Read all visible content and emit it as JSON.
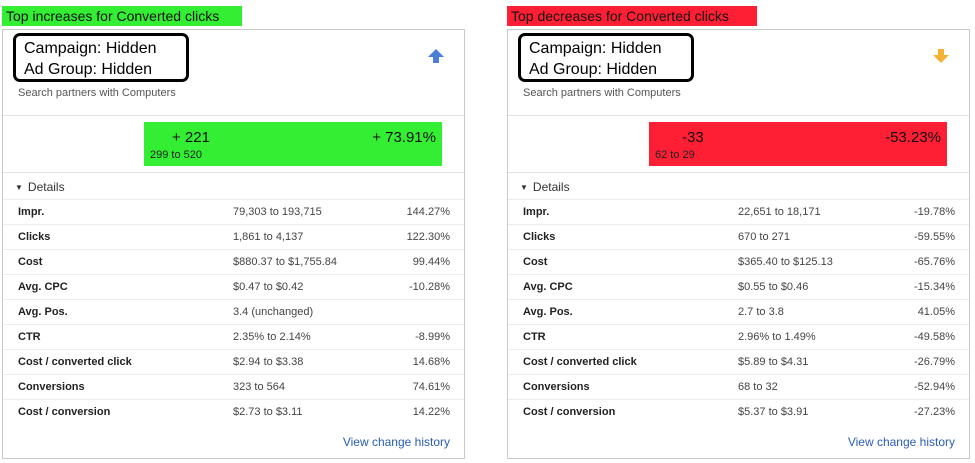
{
  "colors": {
    "increase_highlight": "#33ee33",
    "decrease_highlight": "#ff1f35",
    "up_arrow": "#4a7fd8",
    "down_arrow": "#f2b233",
    "link": "#2a5db0"
  },
  "increases": {
    "heading": "Top increases for Converted clicks",
    "campaign": "Campaign: Hidden",
    "ad_group": "Ad Group: Hidden",
    "network": "Search partners with Computers",
    "trend_icon": "up-arrow-icon",
    "abs_change": "+ 221",
    "range": "299 to 520",
    "pct_change": "+ 73.91%",
    "details_label": "Details",
    "metrics": [
      {
        "name": "Impr.",
        "range": "79,303 to 193,715",
        "pct": "144.27%"
      },
      {
        "name": "Clicks",
        "range": "1,861 to 4,137",
        "pct": "122.30%"
      },
      {
        "name": "Cost",
        "range": "$880.37 to $1,755.84",
        "pct": "99.44%"
      },
      {
        "name": "Avg. CPC",
        "range": "$0.47 to $0.42",
        "pct": "-10.28%"
      },
      {
        "name": "Avg. Pos.",
        "range": "3.4 (unchanged)",
        "pct": ""
      },
      {
        "name": "CTR",
        "range": "2.35% to 2.14%",
        "pct": "-8.99%"
      },
      {
        "name": "Cost / converted click",
        "range": "$2.94 to $3.38",
        "pct": "14.68%"
      },
      {
        "name": "Conversions",
        "range": "323 to 564",
        "pct": "74.61%"
      },
      {
        "name": "Cost / conversion",
        "range": "$2.73 to $3.11",
        "pct": "14.22%"
      }
    ],
    "history_link": "View change history"
  },
  "decreases": {
    "heading": "Top decreases for Converted clicks",
    "campaign": "Campaign: Hidden",
    "ad_group": "Ad Group: Hidden",
    "network": "Search partners with Computers",
    "trend_icon": "down-arrow-icon",
    "abs_change": "-33",
    "range": "62 to 29",
    "pct_change": "-53.23%",
    "details_label": "Details",
    "metrics": [
      {
        "name": "Impr.",
        "range": "22,651 to 18,171",
        "pct": "-19.78%"
      },
      {
        "name": "Clicks",
        "range": "670 to 271",
        "pct": "-59.55%"
      },
      {
        "name": "Cost",
        "range": "$365.40 to $125.13",
        "pct": "-65.76%"
      },
      {
        "name": "Avg. CPC",
        "range": "$0.55 to $0.46",
        "pct": "-15.34%"
      },
      {
        "name": "Avg. Pos.",
        "range": "2.7 to 3.8",
        "pct": "41.05%"
      },
      {
        "name": "CTR",
        "range": "2.96% to 1.49%",
        "pct": "-49.58%"
      },
      {
        "name": "Cost / converted click",
        "range": "$5.89 to $4.31",
        "pct": "-26.79%"
      },
      {
        "name": "Conversions",
        "range": "68 to 32",
        "pct": "-52.94%"
      },
      {
        "name": "Cost / conversion",
        "range": "$5.37 to $3.91",
        "pct": "-27.23%"
      }
    ],
    "history_link": "View change history"
  }
}
